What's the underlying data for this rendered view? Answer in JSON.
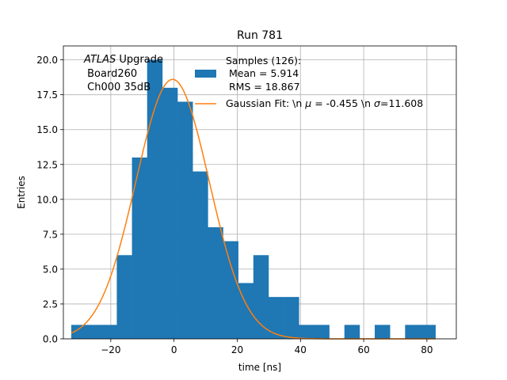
{
  "chart_data": {
    "type": "bar",
    "title": "Run 781",
    "xlabel": "time [ns]",
    "ylabel": "Entries",
    "xlim": [
      -35.0,
      89.3
    ],
    "ylim": [
      0,
      21.0
    ],
    "grid": true,
    "xticks": [
      -20,
      0,
      20,
      40,
      60,
      80
    ],
    "xtick_labels": [
      "−20",
      "0",
      "20",
      "40",
      "60",
      "80"
    ],
    "yticks": [
      0,
      2.5,
      5,
      7.5,
      10,
      12.5,
      15,
      17.5,
      20
    ],
    "ytick_labels": [
      "0.0",
      "2.5",
      "5.0",
      "7.5",
      "10.0",
      "12.5",
      "15.0",
      "17.5",
      "20.0"
    ],
    "histogram": {
      "name": "Samples (126):",
      "color": "#1f77b4",
      "bin_edges": [
        -32.5,
        -27.7,
        -22.9,
        -18.1,
        -13.3,
        -8.5,
        -3.7,
        1.1,
        5.9,
        10.7,
        15.5,
        20.3,
        25.1,
        29.9,
        34.7,
        39.5,
        44.3,
        49.1,
        53.9,
        58.7,
        63.5,
        68.3,
        73.1,
        77.9,
        82.7
      ],
      "counts": [
        1,
        1,
        1,
        6,
        13,
        20,
        18,
        17,
        12,
        8,
        7,
        4,
        6,
        3,
        3,
        1,
        1,
        0,
        1,
        0,
        1,
        0,
        1,
        1
      ]
    },
    "fit": {
      "type": "gaussian",
      "name": "Gaussian Fit: \\n $\\mu$ = -0.455 \\n $\\sigma$=11.608",
      "color": "#ff7f0e",
      "mu": -0.455,
      "sigma": 11.608,
      "amplitude": 18.6,
      "x_range": [
        -32.5,
        82.7
      ]
    },
    "legend": {
      "placement": "upper right",
      "entries": [
        {
          "kind": "patch",
          "color": "#1f77b4",
          "lines": [
            "Samples (126):",
            " Mean = 5.914",
            " RMS = 18.867"
          ]
        },
        {
          "kind": "line",
          "color": "#ff7f0e",
          "text_a": "Gaussian Fit: \\n ",
          "text_mu": "μ",
          "text_b": " = -0.455 \\n ",
          "text_sigma": "σ",
          "text_c": "=11.608"
        }
      ]
    },
    "annotation": {
      "italic": "ATLAS",
      "rest": " Upgrade",
      "line2": " Board260",
      "line3": " Ch000 35dB"
    }
  }
}
